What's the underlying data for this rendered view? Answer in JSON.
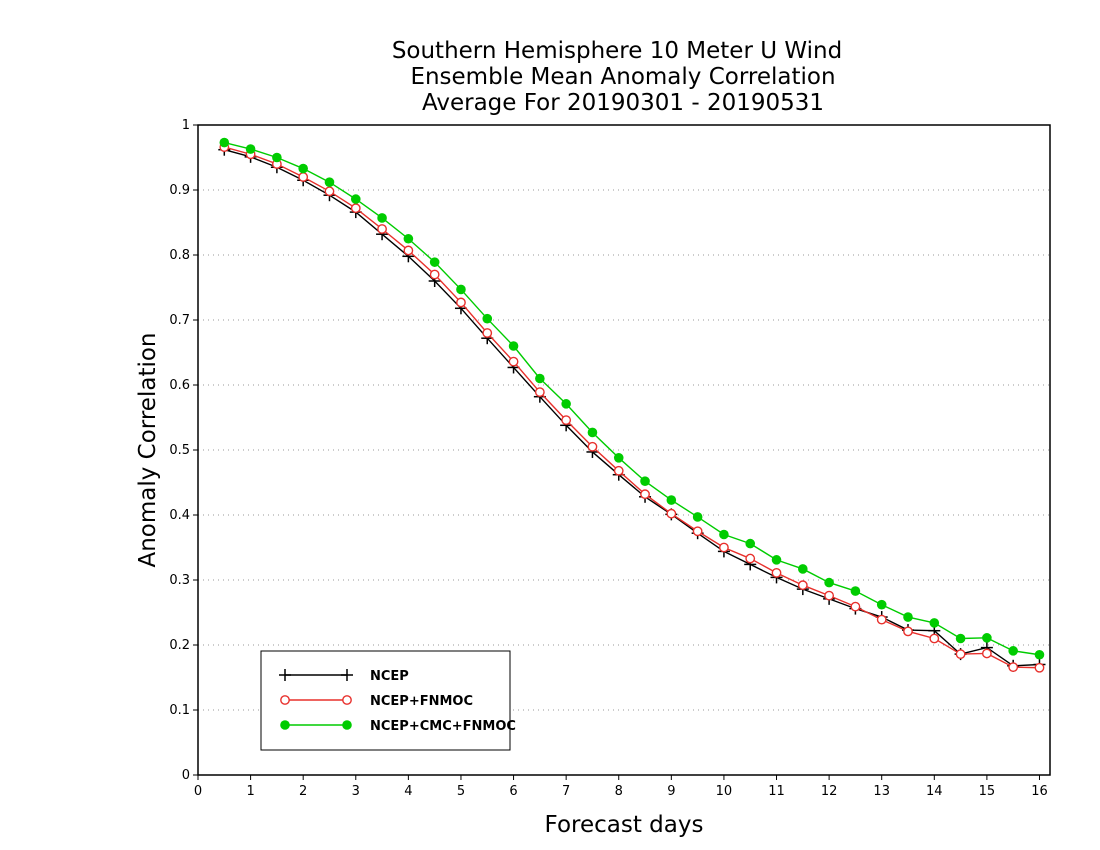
{
  "chart_data": {
    "type": "line",
    "title": [
      "Southern Hemisphere 10 Meter U Wind",
      "Ensemble Mean Anomaly Correlation",
      "Average For 20190301 - 20190531"
    ],
    "xlabel": "Forecast days",
    "ylabel": "Anomaly Correlation",
    "xlim": [
      0,
      16.2
    ],
    "ylim": [
      0,
      1
    ],
    "x_ticks": [
      "0",
      "1",
      "2",
      "3",
      "4",
      "5",
      "6",
      "7",
      "8",
      "9",
      "10",
      "11",
      "12",
      "13",
      "14",
      "15",
      "16"
    ],
    "y_ticks": [
      "0",
      "0.1",
      "0.2",
      "0.3",
      "0.4",
      "0.5",
      "0.6",
      "0.7",
      "0.8",
      "0.9",
      "1"
    ],
    "grid": "horizontal dotted",
    "legend_position": "bottom-left",
    "x": [
      0.5,
      1,
      1.5,
      2,
      2.5,
      3,
      3.5,
      4,
      4.5,
      5,
      5.5,
      6,
      6.5,
      7,
      7.5,
      8,
      8.5,
      9,
      9.5,
      10,
      10.5,
      11,
      11.5,
      12,
      12.5,
      13,
      13.5,
      14,
      14.5,
      15,
      15.5,
      16
    ],
    "series": [
      {
        "name": "NCEP",
        "color": "#000000",
        "marker": "plus",
        "values": [
          0.962,
          0.951,
          0.935,
          0.915,
          0.892,
          0.866,
          0.832,
          0.798,
          0.76,
          0.718,
          0.672,
          0.627,
          0.582,
          0.538,
          0.497,
          0.462,
          0.428,
          0.401,
          0.372,
          0.344,
          0.324,
          0.304,
          0.286,
          0.271,
          0.256,
          0.243,
          0.223,
          0.222,
          0.186,
          0.196,
          0.168,
          0.17
        ]
      },
      {
        "name": "NCEP+FNMOC",
        "color": "#e8302c",
        "marker": "open-circle",
        "values": [
          0.966,
          0.955,
          0.94,
          0.92,
          0.898,
          0.872,
          0.84,
          0.807,
          0.77,
          0.727,
          0.68,
          0.636,
          0.589,
          0.546,
          0.505,
          0.468,
          0.432,
          0.402,
          0.375,
          0.35,
          0.333,
          0.311,
          0.292,
          0.276,
          0.259,
          0.239,
          0.221,
          0.21,
          0.186,
          0.187,
          0.166,
          0.165
        ]
      },
      {
        "name": "NCEP+CMC+FNMOC",
        "color": "#00cc00",
        "marker": "filled-circle",
        "values": [
          0.973,
          0.963,
          0.95,
          0.933,
          0.912,
          0.886,
          0.857,
          0.825,
          0.789,
          0.747,
          0.702,
          0.66,
          0.61,
          0.571,
          0.527,
          0.488,
          0.452,
          0.423,
          0.397,
          0.37,
          0.356,
          0.331,
          0.317,
          0.296,
          0.283,
          0.262,
          0.243,
          0.234,
          0.21,
          0.211,
          0.191,
          0.185
        ]
      }
    ]
  }
}
